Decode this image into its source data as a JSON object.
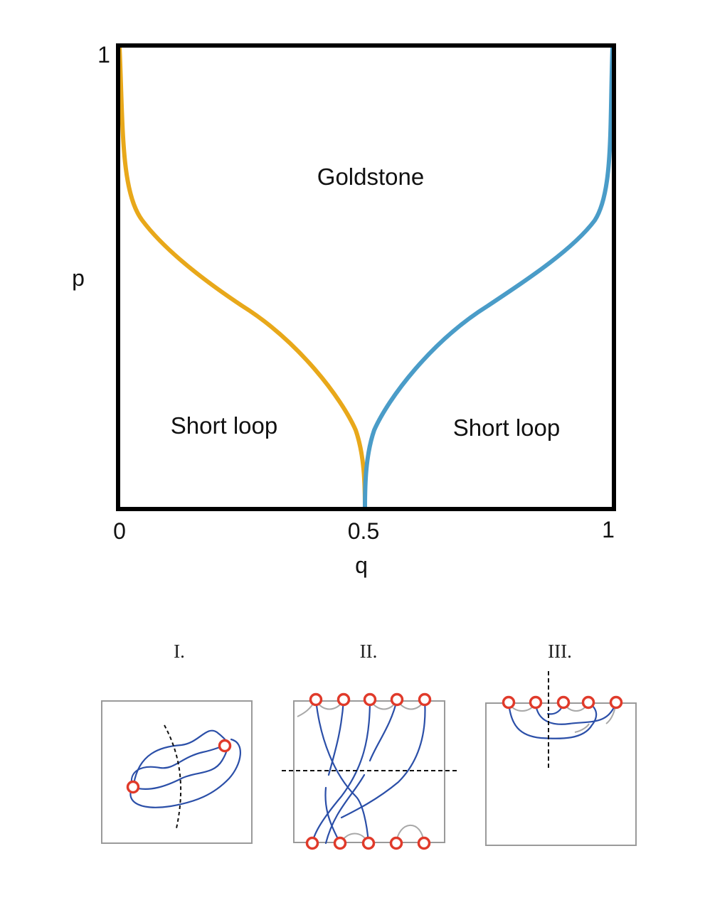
{
  "phase_diagram": {
    "x_axis": {
      "label": "q",
      "ticks": [
        "0",
        "0.5",
        "1"
      ]
    },
    "y_axis": {
      "label": "p",
      "ticks": [
        "1"
      ]
    },
    "regions": {
      "top": "Goldstone",
      "bottom_left": "Short loop",
      "bottom_right": "Short loop"
    },
    "colors": {
      "left_boundary": "#E8A81A",
      "right_boundary": "#4A9CC8",
      "frame": "#000000"
    }
  },
  "panels": [
    {
      "title": "I."
    },
    {
      "title": "II."
    },
    {
      "title": "III."
    }
  ],
  "panel_colors": {
    "strand": "#2B4FA8",
    "endpoint": "#E03A2A",
    "frame": "#9a9a9a",
    "cap": "#a8a8a8",
    "cut": "#111111"
  },
  "chart_data": {
    "type": "line",
    "xlabel": "q",
    "ylabel": "p",
    "xlim": [
      0,
      1
    ],
    "ylim": [
      0,
      1
    ],
    "series": [
      {
        "x": [
          0.5,
          0.49,
          0.44,
          0.38,
          0.25,
          0.12,
          0.05,
          0.02,
          0.01,
          0.0
        ],
        "y": [
          0.0,
          0.1,
          0.22,
          0.33,
          0.45,
          0.58,
          0.65,
          0.72,
          0.85,
          1.0
        ]
      },
      {
        "x": [
          0.5,
          0.51,
          0.56,
          0.62,
          0.75,
          0.88,
          0.95,
          0.98,
          0.99,
          1.0
        ],
        "y": [
          0.0,
          0.1,
          0.22,
          0.33,
          0.45,
          0.58,
          0.65,
          0.72,
          0.85,
          1.0
        ]
      }
    ]
  }
}
